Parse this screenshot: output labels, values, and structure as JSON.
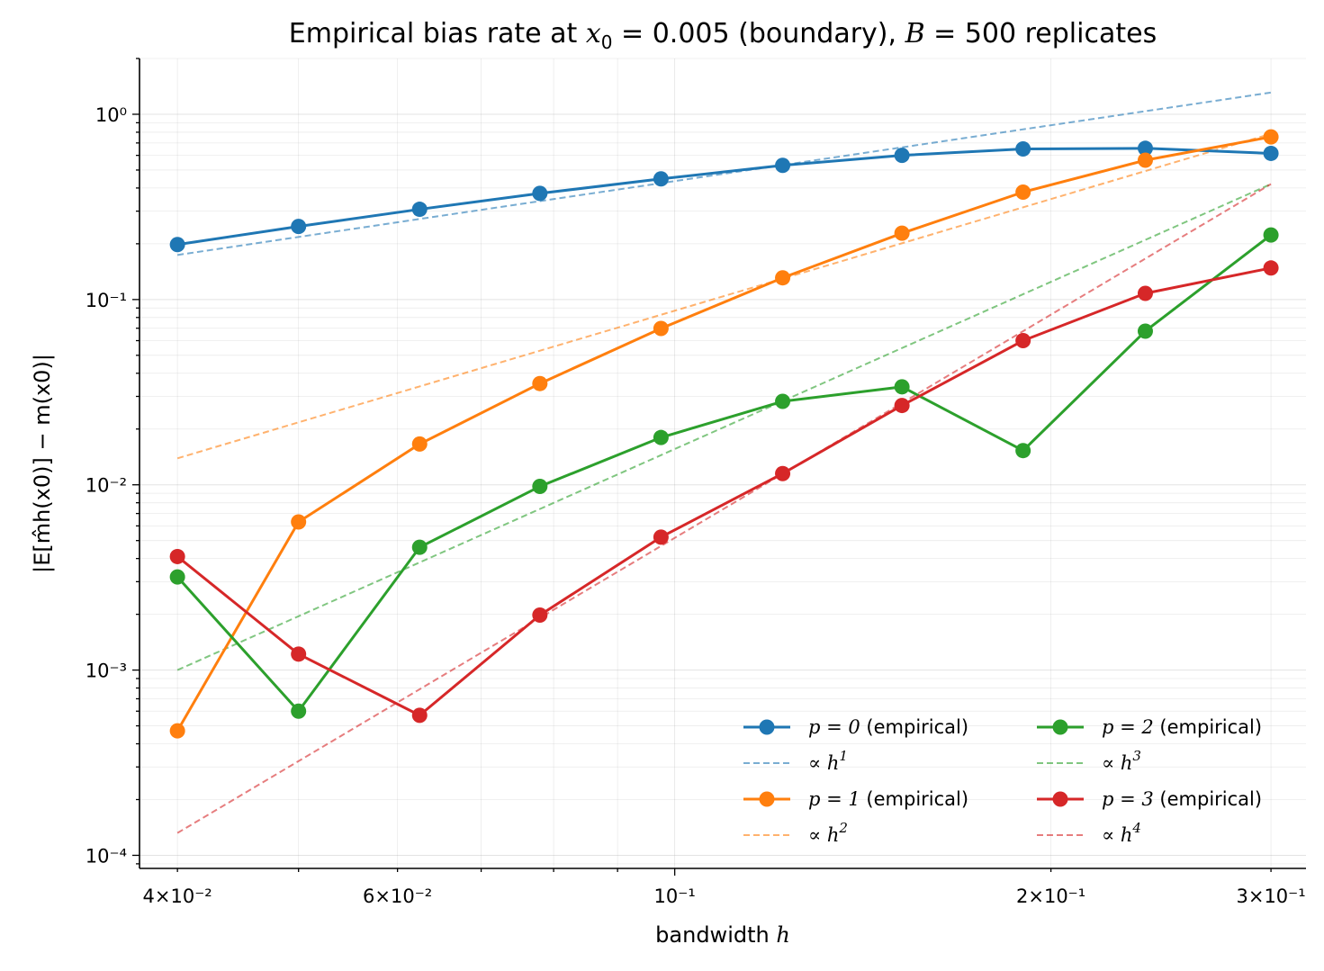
{
  "chart_data": {
    "type": "line",
    "title": "Empirical bias rate at x0 = 0.005 (boundary),  B = 500 replicates",
    "xlabel": "bandwidth h",
    "ylabel": "|E[m̂h(x0)] − m(x0)|",
    "xscale": "log",
    "yscale": "log",
    "xlim": [
      0.0373,
      0.32
    ],
    "ylim": [
      8.5e-05,
      2.0
    ],
    "grid": true,
    "legend_position": "lower-right",
    "x": [
      0.04,
      0.05,
      0.0625,
      0.078,
      0.0975,
      0.122,
      0.152,
      0.19,
      0.238,
      0.3
    ],
    "x_ticks": [
      {
        "value": 0.04,
        "label": "4×10⁻²"
      },
      {
        "value": 0.06,
        "label": "6×10⁻²"
      },
      {
        "value": 0.1,
        "label": "10⁻¹"
      },
      {
        "value": 0.2,
        "label": "2×10⁻¹"
      },
      {
        "value": 0.3,
        "label": "3×10⁻¹"
      }
    ],
    "y_ticks": [
      {
        "value": 1,
        "label": "10⁰"
      },
      {
        "value": 0.1,
        "label": "10⁻¹"
      },
      {
        "value": 0.01,
        "label": "10⁻²"
      },
      {
        "value": 0.001,
        "label": "10⁻³"
      },
      {
        "value": 0.0001,
        "label": "10⁻⁴"
      }
    ],
    "series": [
      {
        "name": "p = 0 (empirical)",
        "color": "#1f77b4",
        "values": [
          0.198,
          0.248,
          0.307,
          0.374,
          0.448,
          0.53,
          0.6,
          0.65,
          0.655,
          0.615
        ]
      },
      {
        "name": "p = 1 (empirical)",
        "color": "#ff7f0e",
        "values": [
          0.00047,
          0.0063,
          0.0166,
          0.0352,
          0.0698,
          0.131,
          0.228,
          0.38,
          0.565,
          0.755
        ]
      },
      {
        "name": "p = 2 (empirical)",
        "color": "#2ca02c",
        "values": [
          0.00318,
          0.0006,
          0.0046,
          0.0098,
          0.018,
          0.0282,
          0.0338,
          0.0153,
          0.0675,
          0.223
        ]
      },
      {
        "name": "p = 3 (empirical)",
        "color": "#d62728",
        "values": [
          0.0041,
          0.00122,
          0.00057,
          0.00198,
          0.00522,
          0.0115,
          0.0268,
          0.06,
          0.108,
          0.148
        ]
      }
    ],
    "reference_lines": [
      {
        "name": "∝ h¹",
        "color": "#1f77b4",
        "power": 1,
        "x_range": [
          0.04,
          0.3
        ],
        "y_range": [
          0.174,
          1.31
        ]
      },
      {
        "name": "∝ h²",
        "color": "#ff7f0e",
        "power": 2,
        "x_range": [
          0.04,
          0.3
        ],
        "y_range": [
          0.0139,
          0.785
        ]
      },
      {
        "name": "∝ h³",
        "color": "#2ca02c",
        "power": 3,
        "x_range": [
          0.04,
          0.3
        ],
        "y_range": [
          0.001,
          0.42
        ]
      },
      {
        "name": "∝ h⁴",
        "color": "#d62728",
        "power": 4,
        "x_range": [
          0.04,
          0.3
        ],
        "y_range": [
          0.000132,
          0.42
        ]
      }
    ],
    "legend": [
      {
        "text": "(empirical)",
        "math": "p = 0",
        "kind": "marker",
        "color": "#1f77b4"
      },
      {
        "text": "",
        "math": "∝ h",
        "sup": "1",
        "kind": "dashed",
        "color": "#1f77b4"
      },
      {
        "text": "(empirical)",
        "math": "p = 1",
        "kind": "marker",
        "color": "#ff7f0e"
      },
      {
        "text": "",
        "math": "∝ h",
        "sup": "2",
        "kind": "dashed",
        "color": "#ff7f0e"
      },
      {
        "text": "(empirical)",
        "math": "p = 2",
        "kind": "marker",
        "color": "#2ca02c"
      },
      {
        "text": "",
        "math": "∝ h",
        "sup": "3",
        "kind": "dashed",
        "color": "#2ca02c"
      },
      {
        "text": "(empirical)",
        "math": "p = 3",
        "kind": "marker",
        "color": "#d62728"
      },
      {
        "text": "",
        "math": "∝ h",
        "sup": "4",
        "kind": "dashed",
        "color": "#d62728"
      }
    ],
    "title_parts": {
      "pre": "Empirical bias rate at ",
      "math1": "x",
      "math1_sub": "0",
      "mid1": " = 0.005 (boundary),  ",
      "math2": "B",
      "mid2": " = 500 replicates"
    },
    "xlabel_parts": {
      "pre": "bandwidth ",
      "math": "h"
    }
  }
}
